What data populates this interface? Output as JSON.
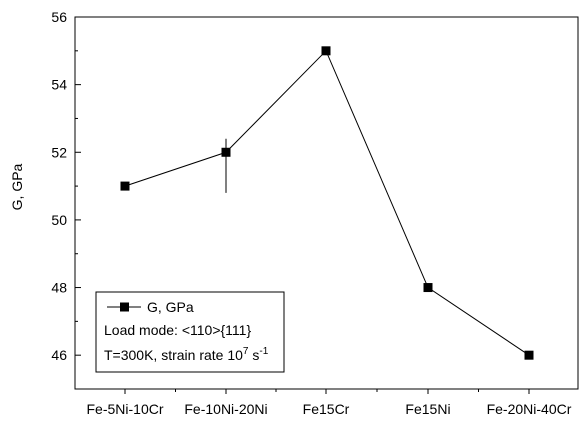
{
  "chart_data": {
    "type": "line",
    "categories": [
      "Fe-5Ni-10Cr",
      "Fe-10Ni-20Ni",
      "Fe15Cr",
      "Fe15Ni",
      "Fe-20Ni-40Cr"
    ],
    "series": [
      {
        "name": "G, GPa",
        "values": [
          51,
          52,
          55,
          48,
          46
        ],
        "color": "#000000",
        "marker": "square"
      }
    ],
    "error_bars": [
      {
        "category": "Fe-10Ni-20Ni",
        "low": 50.8,
        "high": 52.4
      }
    ],
    "title": "",
    "xlabel": "",
    "ylabel": "G, GPa",
    "ylim": [
      45,
      56
    ],
    "yticks": [
      46,
      48,
      50,
      52,
      54,
      56
    ],
    "grid": false,
    "legend": {
      "placement": "bottom-left",
      "entry": "G, GPa",
      "lines": [
        "Load mode: <110>{111}"
      ],
      "strain_line": {
        "prefix": "T=300K, strain rate 10",
        "exponent": "7",
        "unit": " s",
        "unit_exponent": "-1"
      }
    }
  }
}
